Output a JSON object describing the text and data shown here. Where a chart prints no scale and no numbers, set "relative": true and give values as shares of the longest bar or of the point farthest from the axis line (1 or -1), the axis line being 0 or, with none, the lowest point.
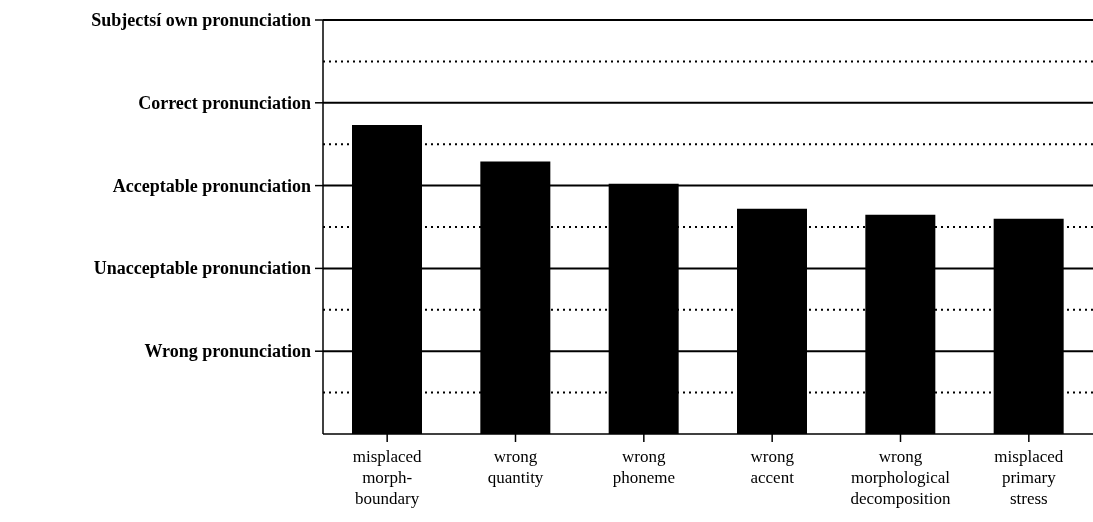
{
  "chart_data": {
    "type": "bar",
    "relative": true,
    "categories": [
      "misplaced morph-boundary",
      "wrong quantity",
      "wrong phoneme",
      "wrong accent",
      "wrong morphological decomposition",
      "misplaced primary stress"
    ],
    "values": [
      1,
      0.882,
      0.81,
      0.729,
      0.71,
      0.697
    ],
    "color": "#000000",
    "annotations": [
      "Subjectsí own pronunciation",
      "Correct pronunciation",
      "Acceptable pronunciation",
      "Unacceptable pronunciation",
      "Wrong pronunciation"
    ],
    "grid": "y"
  }
}
